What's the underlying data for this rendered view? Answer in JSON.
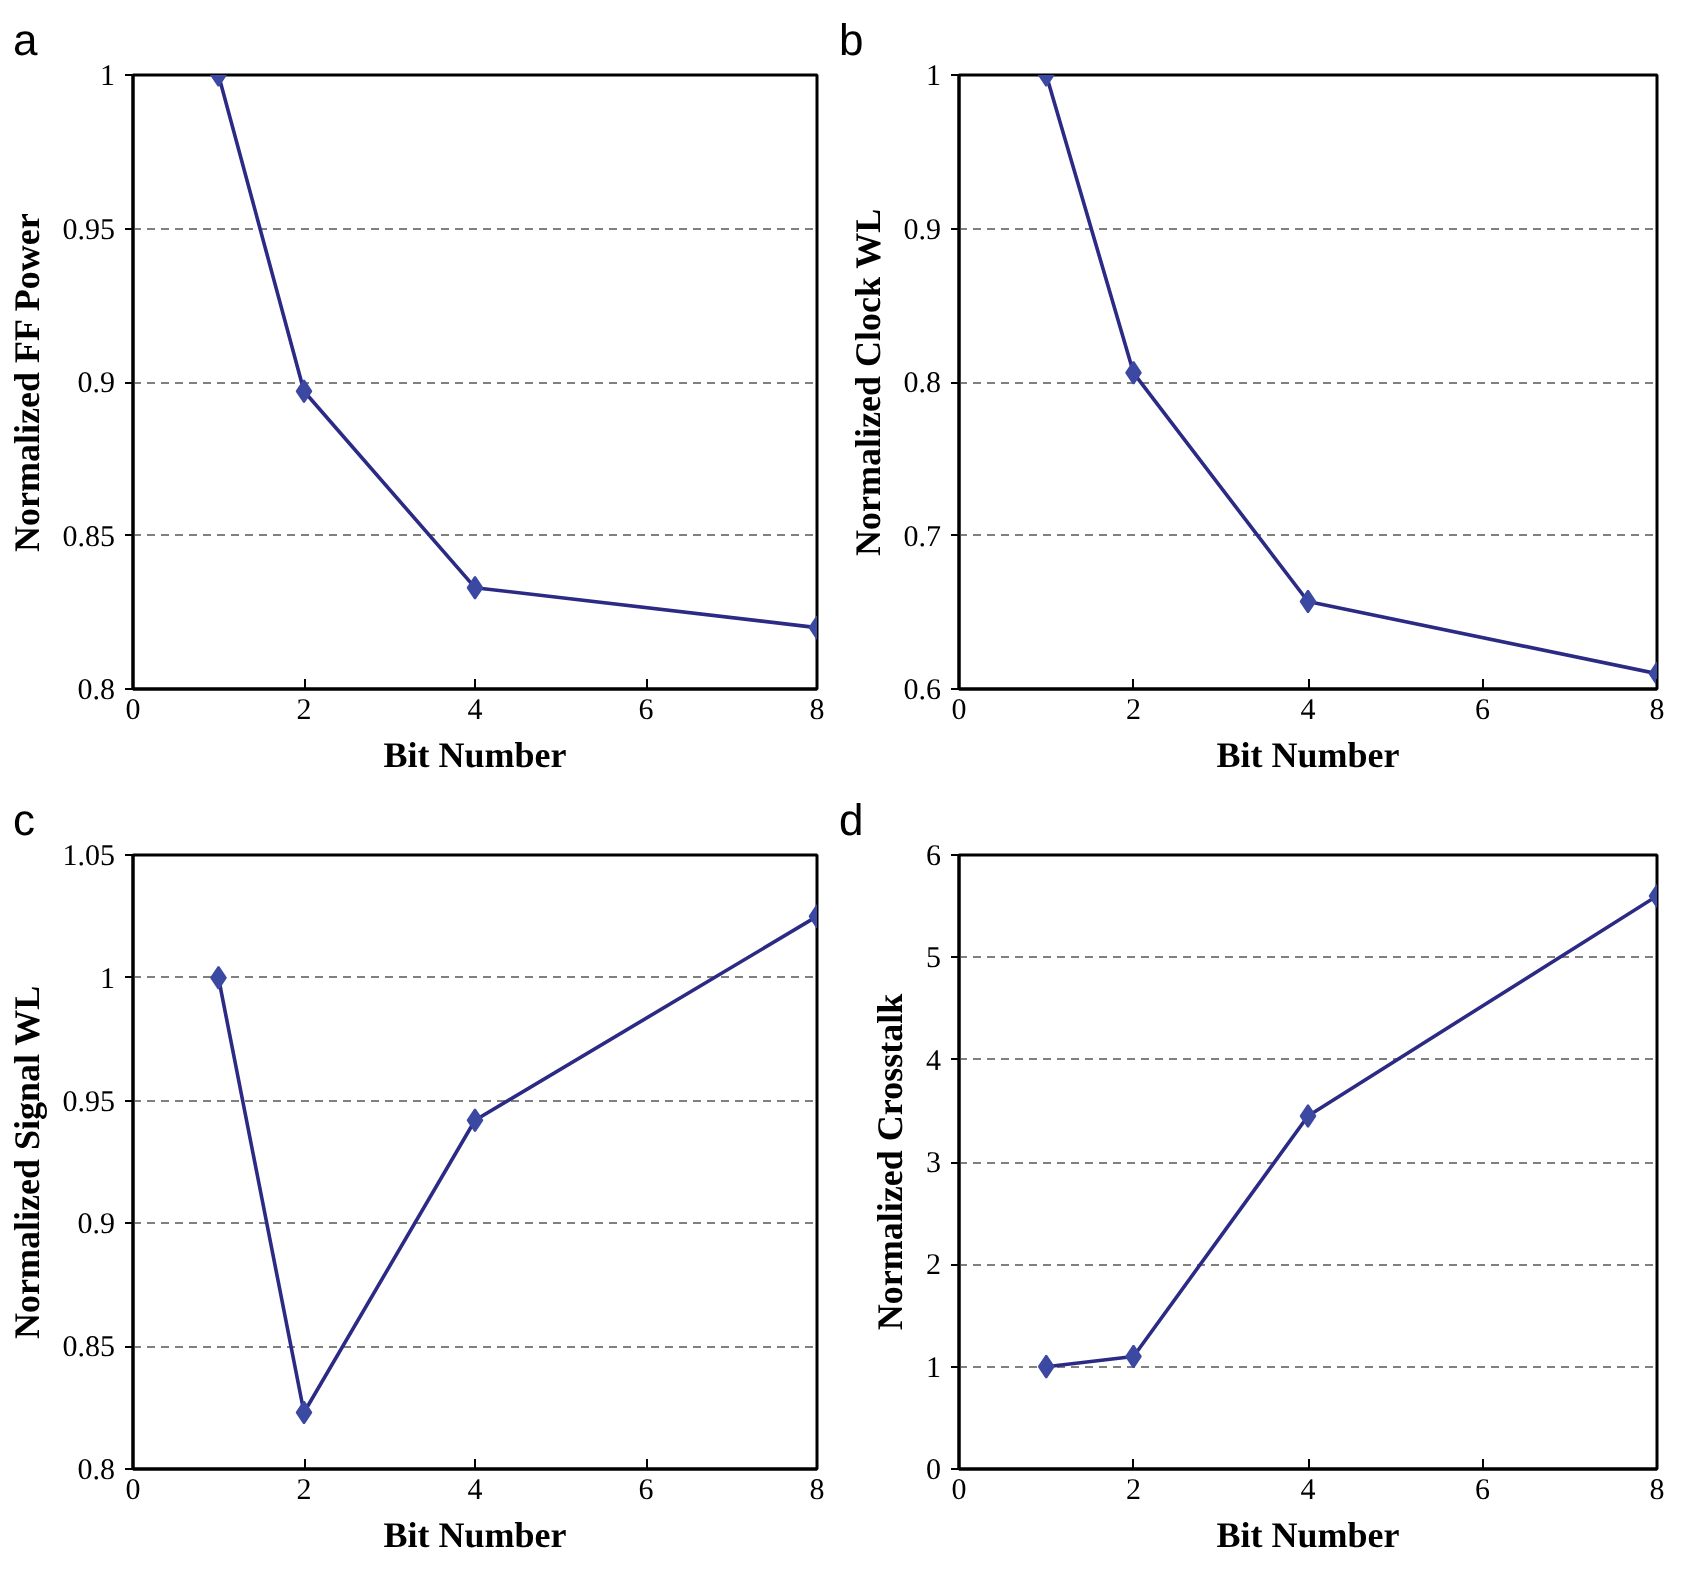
{
  "chart_data": [
    {
      "type": "line",
      "title": "a",
      "xlabel": "Bit Number",
      "ylabel": "Normalized FF Power",
      "x": [
        1,
        2,
        4,
        8
      ],
      "series": [
        {
          "color": "#2b2a85",
          "values": [
            1,
            0.897,
            0.833,
            0.82
          ]
        }
      ],
      "xlim": [
        0,
        8
      ],
      "xticks": [
        0,
        2,
        4,
        6,
        8
      ],
      "ylim": [
        0.8,
        1
      ],
      "yticks": [
        0.8,
        0.85,
        0.9,
        0.95,
        1
      ],
      "grid": "y",
      "marker": "diamond",
      "line_style": "solid"
    },
    {
      "type": "line",
      "title": "b",
      "xlabel": "Bit Number",
      "ylabel": "Normalized Clock WL",
      "x": [
        1,
        2,
        4,
        8
      ],
      "series": [
        {
          "color": "#2b2a85",
          "values": [
            1,
            0.806,
            0.657,
            0.61
          ]
        }
      ],
      "xlim": [
        0,
        8
      ],
      "xticks": [
        0,
        2,
        4,
        6,
        8
      ],
      "ylim": [
        0.6,
        1
      ],
      "yticks": [
        0.6,
        0.7,
        0.8,
        0.9,
        1
      ],
      "grid": "y",
      "marker": "diamond",
      "line_style": "solid"
    },
    {
      "type": "line",
      "title": "c",
      "xlabel": "Bit Number",
      "ylabel": "Normalized Signal WL",
      "x": [
        1,
        2,
        4,
        8
      ],
      "series": [
        {
          "color": "#2b2a85",
          "values": [
            1,
            0.823,
            0.942,
            1.025
          ]
        }
      ],
      "xlim": [
        0,
        8
      ],
      "xticks": [
        0,
        2,
        4,
        6,
        8
      ],
      "ylim": [
        0.8,
        1.05
      ],
      "yticks": [
        0.8,
        0.85,
        0.9,
        0.95,
        1,
        1.05
      ],
      "grid": "y",
      "marker": "diamond",
      "line_style": "solid"
    },
    {
      "type": "line",
      "title": "d",
      "xlabel": "Bit Number",
      "ylabel": "Normalized Crosstalk",
      "x": [
        1,
        2,
        4,
        8
      ],
      "series": [
        {
          "color": "#2b2a85",
          "values": [
            1,
            1.1,
            3.45,
            5.6
          ]
        }
      ],
      "xlim": [
        0,
        8
      ],
      "xticks": [
        0,
        2,
        4,
        6,
        8
      ],
      "ylim": [
        0,
        6
      ],
      "yticks": [
        0,
        1,
        2,
        3,
        4,
        5,
        6
      ],
      "grid": "y",
      "marker": "diamond",
      "line_style": "solid"
    }
  ]
}
